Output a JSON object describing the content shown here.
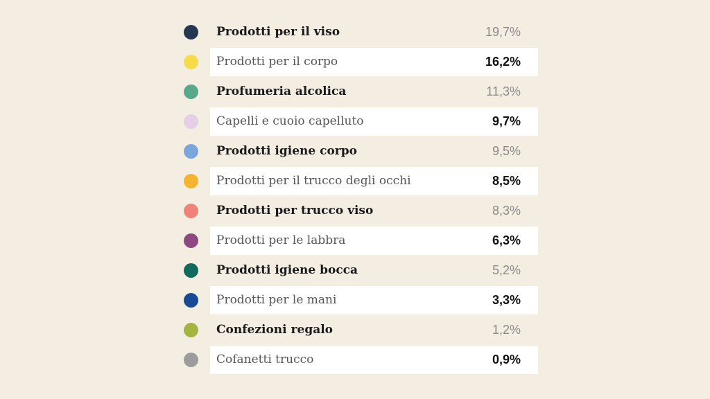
{
  "chart_data": {
    "type": "table",
    "rows": [
      {
        "label": "Prodotti per il viso",
        "value_text": "19,7%",
        "value": 19.7,
        "color": "#243650"
      },
      {
        "label": "Prodotti per il corpo",
        "value_text": "16,2%",
        "value": 16.2,
        "color": "#f7dc4a"
      },
      {
        "label": "Profumeria alcolica",
        "value_text": "11,3%",
        "value": 11.3,
        "color": "#58a98c"
      },
      {
        "label": "Capelli e cuoio capelluto",
        "value_text": "9,7%",
        "value": 9.7,
        "color": "#e5cfe6"
      },
      {
        "label": "Prodotti igiene corpo",
        "value_text": "9,5%",
        "value": 9.5,
        "color": "#7aa6dd"
      },
      {
        "label": "Prodotti per il trucco degli occhi",
        "value_text": "8,5%",
        "value": 8.5,
        "color": "#f5b42c"
      },
      {
        "label": "Prodotti per trucco viso",
        "value_text": "8,3%",
        "value": 8.3,
        "color": "#f08377"
      },
      {
        "label": "Prodotti per le labbra",
        "value_text": "6,3%",
        "value": 6.3,
        "color": "#8e4a80"
      },
      {
        "label": "Prodotti igiene bocca",
        "value_text": "5,2%",
        "value": 5.2,
        "color": "#0f6b5c"
      },
      {
        "label": "Prodotti per le mani",
        "value_text": "3,3%",
        "value": 3.3,
        "color": "#164a94"
      },
      {
        "label": "Confezioni regalo",
        "value_text": "1,2%",
        "value": 1.2,
        "color": "#a3b540"
      },
      {
        "label": "Cofanetti trucco",
        "value_text": "0,9%",
        "value": 0.9,
        "color": "#9c9c9c"
      }
    ]
  }
}
